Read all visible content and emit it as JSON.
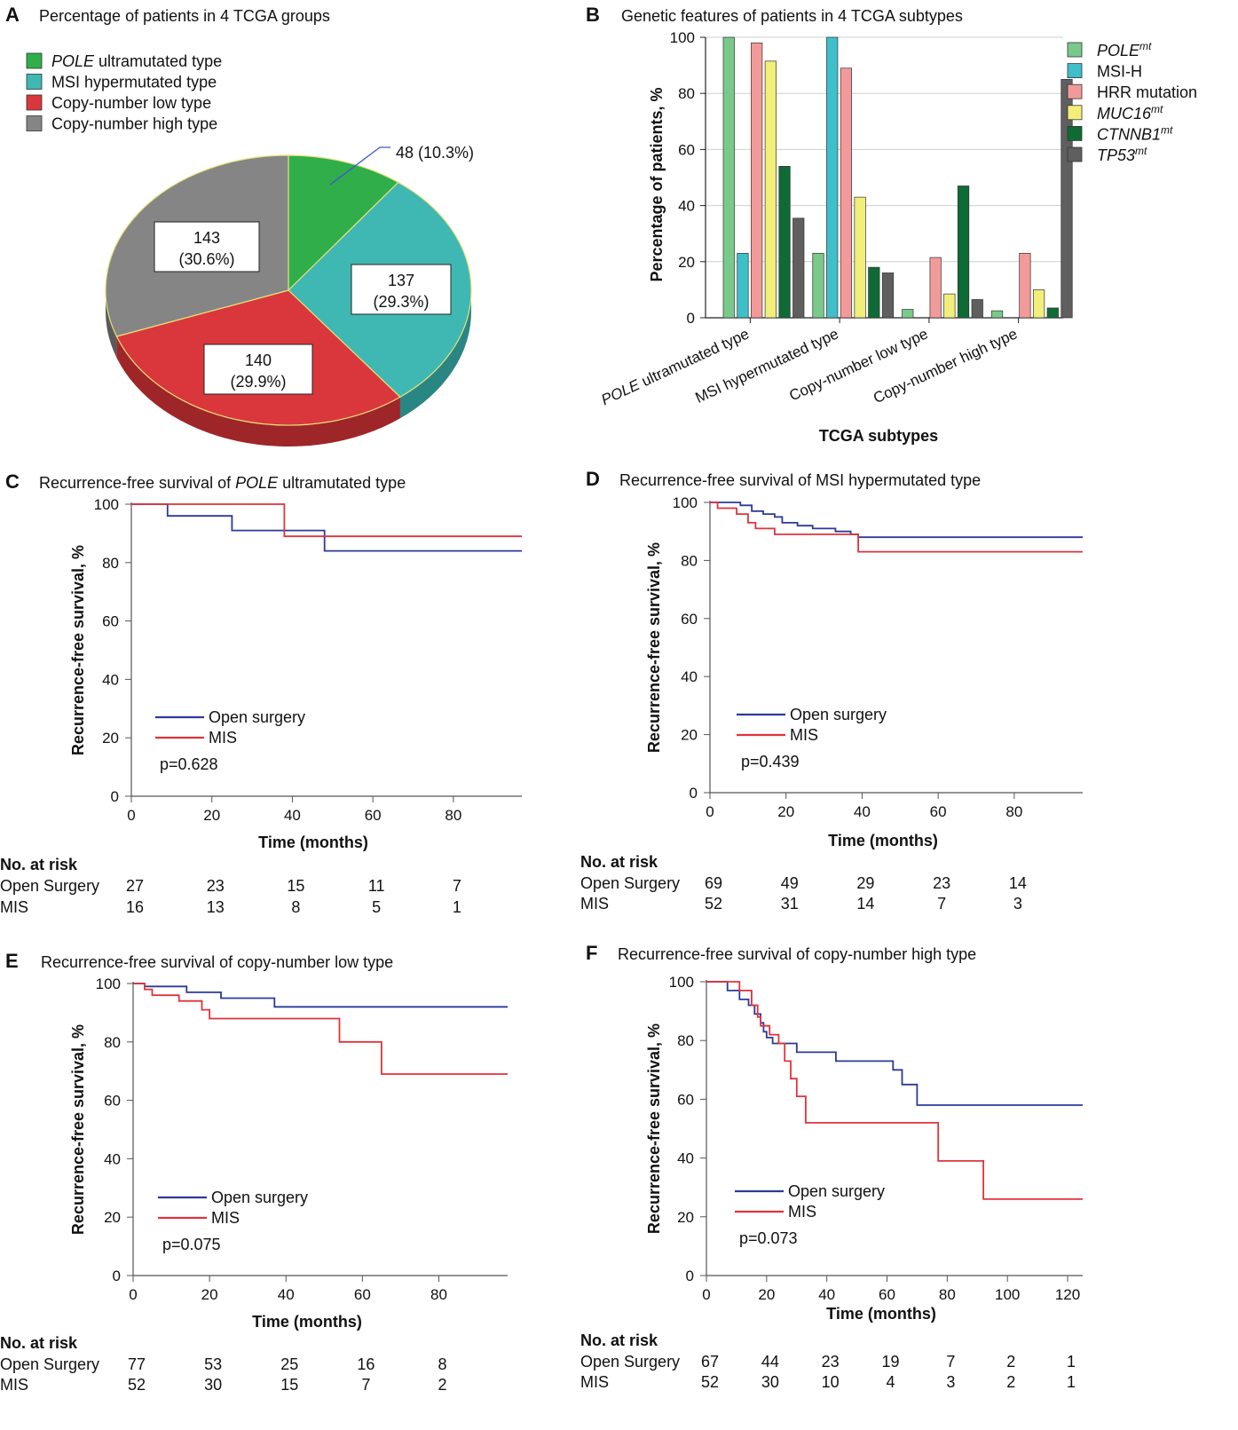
{
  "colors": {
    "pole": "#2fae4a",
    "msi": "#3fb8b4",
    "cnl": "#d9373b",
    "cnh": "#858585",
    "open": "#2b3a9a",
    "mis": "#e0333a",
    "bar_pole": "#79c98b",
    "bar_msi": "#3fbfc9",
    "bar_hrr": "#f29a9a",
    "bar_muc16": "#f2ee7a",
    "bar_ctnnb1": "#0f6b35",
    "bar_tp53": "#5f5f5f"
  },
  "panel_a": {
    "label": "A",
    "title": "Percentage of patients in 4 TCGA groups",
    "chart_data": {
      "type": "pie",
      "title": "Percentage of patients in 4 TCGA groups",
      "legend": [
        {
          "italic": "POLE",
          "rest": " ultramutated type"
        },
        {
          "italic": "",
          "rest": "MSI hypermutated type"
        },
        {
          "italic": "",
          "rest": "Copy-number low type"
        },
        {
          "italic": "",
          "rest": "Copy-number high type"
        }
      ],
      "slices": [
        {
          "name": "POLE ultramutated type",
          "count": 48,
          "percent": 10.3,
          "label_line1": "48 (10.3%)",
          "label_line2": ""
        },
        {
          "name": "MSI hypermutated type",
          "count": 137,
          "percent": 29.3,
          "label_line1": "137",
          "label_line2": "(29.3%)"
        },
        {
          "name": "Copy-number low type",
          "count": 140,
          "percent": 29.9,
          "label_line1": "140",
          "label_line2": "(29.9%)"
        },
        {
          "name": "Copy-number high type",
          "count": 143,
          "percent": 30.6,
          "label_line1": "143",
          "label_line2": "(30.6%)"
        }
      ]
    }
  },
  "panel_b": {
    "label": "B",
    "title": "Genetic features of patients in 4 TCGA subtypes",
    "chart_data": {
      "type": "bar",
      "title": "Genetic features of patients in 4 TCGA subtypes",
      "xlabel": "TCGA subtypes",
      "ylabel": "Percentage of patients, %",
      "ylim": [
        0,
        100
      ],
      "yticks": [
        0,
        20,
        40,
        60,
        80,
        100
      ],
      "categories": [
        {
          "italic": "POLE",
          "rest": " ultramutated type"
        },
        {
          "italic": "",
          "rest": "MSI hypermutated type"
        },
        {
          "italic": "",
          "rest": "Copy-number low type"
        },
        {
          "italic": "",
          "rest": "Copy-number high type"
        }
      ],
      "series": [
        {
          "name": "POLE",
          "sup": "mt",
          "italic": true,
          "values": [
            100,
            23,
            3,
            2.5
          ]
        },
        {
          "name": "MSI-H",
          "sup": "",
          "italic": false,
          "values": [
            23,
            100,
            0,
            0
          ]
        },
        {
          "name": "HRR mutation",
          "sup": "",
          "italic": false,
          "values": [
            98,
            89,
            21.5,
            23
          ]
        },
        {
          "name": "MUC16",
          "sup": "mt",
          "italic": true,
          "values": [
            91.5,
            43,
            8.5,
            10
          ]
        },
        {
          "name": "CTNNB1",
          "sup": "mt",
          "italic": true,
          "values": [
            54,
            18,
            47,
            3.5
          ]
        },
        {
          "name": "TP53",
          "sup": "mt",
          "italic": true,
          "values": [
            35.5,
            16,
            6.5,
            85
          ]
        }
      ]
    }
  },
  "km_panels": [
    {
      "label": "C",
      "title_pre": "Recurrence-free survival of ",
      "title_italic": "POLE",
      "title_post": " ultramutated type",
      "chart_data": {
        "type": "line",
        "title": "Recurrence-free survival of POLE ultramutated type",
        "xlabel": "Time (months)",
        "ylabel": "Recurrence-free survival, %",
        "xlim": [
          0,
          97
        ],
        "ylim": [
          0,
          100
        ],
        "xticks": [
          0,
          20,
          40,
          60,
          80
        ],
        "yticks": [
          0,
          20,
          40,
          60,
          80,
          100
        ],
        "series": [
          {
            "name": "Open surgery",
            "points": [
              [
                0,
                100
              ],
              [
                9,
                100
              ],
              [
                9,
                96
              ],
              [
                25,
                96
              ],
              [
                25,
                91
              ],
              [
                48,
                91
              ],
              [
                48,
                84
              ],
              [
                97,
                84
              ]
            ]
          },
          {
            "name": "MIS",
            "points": [
              [
                0,
                100
              ],
              [
                38,
                100
              ],
              [
                38,
                89
              ],
              [
                97,
                89
              ]
            ]
          }
        ],
        "pvalue": "p=0.628"
      },
      "risk": {
        "heading": "No. at risk",
        "rows": [
          {
            "name": "Open Surgery",
            "values": [
              "27",
              "23",
              "15",
              "11",
              "7"
            ]
          },
          {
            "name": "MIS",
            "values": [
              "16",
              "13",
              "8",
              "5",
              "1"
            ]
          }
        ]
      }
    },
    {
      "label": "D",
      "title_pre": "Recurrence-free survival of MSI hypermutated type",
      "title_italic": "",
      "title_post": "",
      "chart_data": {
        "type": "line",
        "title": "Recurrence-free survival of MSI hypermutated type",
        "xlabel": "Time (months)",
        "ylabel": "Recurrence-free survival, %",
        "xlim": [
          0,
          98
        ],
        "ylim": [
          0,
          100
        ],
        "xticks": [
          0,
          20,
          40,
          60,
          80
        ],
        "yticks": [
          0,
          20,
          40,
          60,
          80,
          100
        ],
        "series": [
          {
            "name": "Open surgery",
            "points": [
              [
                0,
                100
              ],
              [
                8,
                100
              ],
              [
                8,
                99
              ],
              [
                11,
                99
              ],
              [
                11,
                97
              ],
              [
                14,
                97
              ],
              [
                14,
                96
              ],
              [
                17,
                96
              ],
              [
                17,
                95
              ],
              [
                19,
                95
              ],
              [
                19,
                93
              ],
              [
                23,
                93
              ],
              [
                23,
                92
              ],
              [
                27,
                92
              ],
              [
                27,
                91
              ],
              [
                33,
                91
              ],
              [
                33,
                90
              ],
              [
                37,
                90
              ],
              [
                37,
                89
              ],
              [
                39,
                89
              ],
              [
                39,
                88
              ],
              [
                98,
                88
              ]
            ]
          },
          {
            "name": "MIS",
            "points": [
              [
                0,
                100
              ],
              [
                2,
                100
              ],
              [
                2,
                98
              ],
              [
                7,
                98
              ],
              [
                7,
                96
              ],
              [
                10,
                96
              ],
              [
                10,
                93
              ],
              [
                12,
                93
              ],
              [
                12,
                91
              ],
              [
                17,
                91
              ],
              [
                17,
                89
              ],
              [
                39,
                89
              ],
              [
                39,
                83
              ],
              [
                98,
                83
              ]
            ]
          }
        ],
        "pvalue": "p=0.439"
      },
      "risk": {
        "heading": "No. at risk",
        "rows": [
          {
            "name": "Open Surgery",
            "values": [
              "69",
              "49",
              "29",
              "23",
              "14"
            ]
          },
          {
            "name": "MIS",
            "values": [
              "52",
              "31",
              "14",
              "7",
              "3"
            ]
          }
        ]
      }
    },
    {
      "label": "E",
      "title_pre": "Recurrence-free survival of copy-number low type",
      "title_italic": "",
      "title_post": "",
      "chart_data": {
        "type": "line",
        "title": "Recurrence-free survival of copy-number low type",
        "xlabel": "Time (months)",
        "ylabel": "Recurrence-free survival, %",
        "xlim": [
          0,
          98
        ],
        "ylim": [
          0,
          100
        ],
        "xticks": [
          0,
          20,
          40,
          60,
          80
        ],
        "yticks": [
          0,
          20,
          40,
          60,
          80,
          100
        ],
        "series": [
          {
            "name": "Open surgery",
            "points": [
              [
                0,
                100
              ],
              [
                3,
                100
              ],
              [
                3,
                99
              ],
              [
                14,
                99
              ],
              [
                14,
                97
              ],
              [
                23,
                97
              ],
              [
                23,
                95
              ],
              [
                37,
                95
              ],
              [
                37,
                92
              ],
              [
                98,
                92
              ]
            ]
          },
          {
            "name": "MIS",
            "points": [
              [
                0,
                100
              ],
              [
                3,
                100
              ],
              [
                3,
                98
              ],
              [
                5,
                98
              ],
              [
                5,
                96
              ],
              [
                12,
                96
              ],
              [
                12,
                94
              ],
              [
                18,
                94
              ],
              [
                18,
                91
              ],
              [
                20,
                91
              ],
              [
                20,
                88
              ],
              [
                54,
                88
              ],
              [
                54,
                80
              ],
              [
                65,
                80
              ],
              [
                65,
                69
              ],
              [
                98,
                69
              ]
            ]
          }
        ],
        "pvalue": "p=0.075"
      },
      "risk": {
        "heading": "No. at risk",
        "rows": [
          {
            "name": "Open Surgery",
            "values": [
              "77",
              "53",
              "25",
              "16",
              "8"
            ]
          },
          {
            "name": "MIS",
            "values": [
              "52",
              "30",
              "15",
              "7",
              "2"
            ]
          }
        ]
      }
    },
    {
      "label": "F",
      "title_pre": "Recurrence-free survival of copy-number high type",
      "title_italic": "",
      "title_post": "",
      "chart_data": {
        "type": "line",
        "title": "Recurrence-free survival of copy-number high type",
        "xlabel": "Time (months)",
        "ylabel": "Recurrence-free survival, %",
        "xlim": [
          0,
          125
        ],
        "ylim": [
          0,
          100
        ],
        "xticks": [
          0,
          20,
          40,
          60,
          80,
          100,
          120
        ],
        "yticks": [
          0,
          20,
          40,
          60,
          80,
          100
        ],
        "series": [
          {
            "name": "Open surgery",
            "points": [
              [
                0,
                100
              ],
              [
                7,
                100
              ],
              [
                7,
                97
              ],
              [
                11,
                97
              ],
              [
                11,
                94
              ],
              [
                14,
                94
              ],
              [
                14,
                92
              ],
              [
                16,
                92
              ],
              [
                16,
                89
              ],
              [
                18,
                89
              ],
              [
                18,
                86
              ],
              [
                19,
                86
              ],
              [
                19,
                83
              ],
              [
                20,
                83
              ],
              [
                20,
                81
              ],
              [
                22,
                81
              ],
              [
                22,
                79
              ],
              [
                30,
                79
              ],
              [
                30,
                76
              ],
              [
                43,
                76
              ],
              [
                43,
                73
              ],
              [
                62,
                73
              ],
              [
                62,
                70
              ],
              [
                65,
                70
              ],
              [
                65,
                65
              ],
              [
                70,
                65
              ],
              [
                70,
                58
              ],
              [
                125,
                58
              ]
            ]
          },
          {
            "name": "MIS",
            "points": [
              [
                0,
                100
              ],
              [
                11,
                100
              ],
              [
                11,
                97
              ],
              [
                15,
                97
              ],
              [
                15,
                92
              ],
              [
                17,
                92
              ],
              [
                17,
                88
              ],
              [
                18,
                88
              ],
              [
                18,
                85
              ],
              [
                21,
                85
              ],
              [
                21,
                82
              ],
              [
                24,
                82
              ],
              [
                24,
                79
              ],
              [
                26,
                79
              ],
              [
                26,
                73
              ],
              [
                28,
                73
              ],
              [
                28,
                67
              ],
              [
                30,
                67
              ],
              [
                30,
                61
              ],
              [
                33,
                61
              ],
              [
                33,
                52
              ],
              [
                77,
                52
              ],
              [
                77,
                39
              ],
              [
                92,
                39
              ],
              [
                92,
                26
              ],
              [
                125,
                26
              ]
            ]
          }
        ],
        "pvalue": "p=0.073"
      },
      "risk": {
        "heading": "No. at risk",
        "rows": [
          {
            "name": "Open Surgery",
            "values": [
              "67",
              "44",
              "23",
              "19",
              "7",
              "2",
              "1"
            ]
          },
          {
            "name": "MIS",
            "values": [
              "52",
              "30",
              "10",
              "4",
              "3",
              "2",
              "1"
            ]
          }
        ]
      }
    }
  ]
}
